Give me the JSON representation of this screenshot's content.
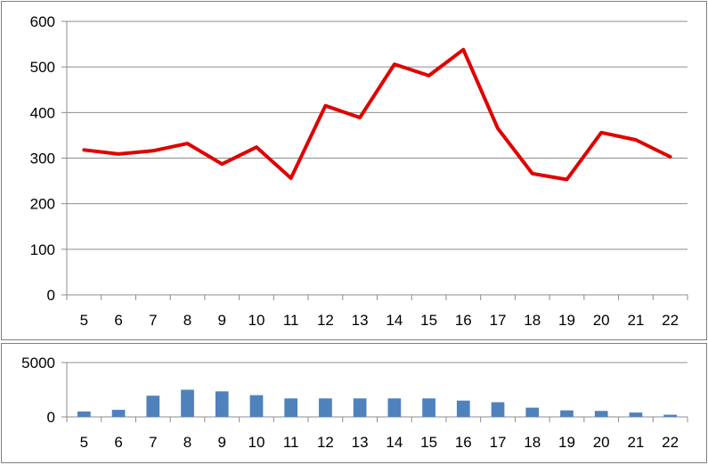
{
  "chart_data": [
    {
      "type": "line",
      "x": [
        "5",
        "6",
        "7",
        "8",
        "9",
        "10",
        "11",
        "12",
        "13",
        "14",
        "15",
        "16",
        "17",
        "18",
        "19",
        "20",
        "21",
        "22"
      ],
      "series": [
        {
          "values": [
            318,
            309,
            316,
            332,
            287,
            324,
            256,
            415,
            389,
            506,
            481,
            538,
            365,
            266,
            253,
            356,
            340,
            303
          ]
        }
      ],
      "yticks": [
        "0",
        "100",
        "200",
        "300",
        "400",
        "500",
        "600"
      ],
      "ylim": [
        0,
        600
      ],
      "grid": true,
      "legend": "none",
      "colors": {
        "line": "#e00000"
      }
    },
    {
      "type": "bar",
      "categories": [
        "5",
        "6",
        "7",
        "8",
        "9",
        "10",
        "11",
        "12",
        "13",
        "14",
        "15",
        "16",
        "17",
        "18",
        "19",
        "20",
        "21",
        "22"
      ],
      "values": [
        500,
        650,
        1950,
        2500,
        2350,
        2000,
        1700,
        1700,
        1700,
        1700,
        1700,
        1500,
        1350,
        850,
        600,
        550,
        400,
        200
      ],
      "yticks": [
        "0",
        "5000"
      ],
      "ylim": [
        0,
        5000
      ],
      "grid": true,
      "legend": "none",
      "colors": {
        "bar": "#4f81bd"
      }
    }
  ]
}
